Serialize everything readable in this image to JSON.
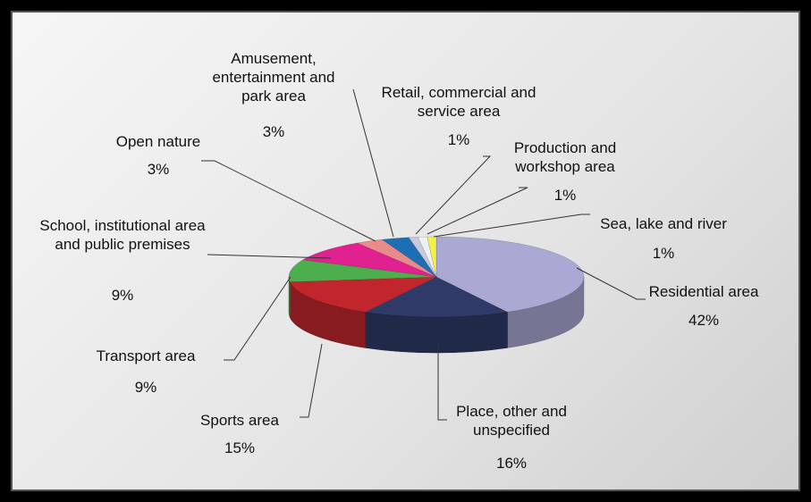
{
  "chart_data": {
    "type": "pie3d",
    "categories": [
      "Residential area",
      "Place, other and unspecified",
      "Sports area",
      "Transport area",
      "School, institutional area and public premises",
      "Open nature",
      "Amusement, entertainment and park area",
      "Retail, commercial and service area",
      "Production and workshop area",
      "Sea, lake and river"
    ],
    "values": [
      42,
      16,
      15,
      9,
      9,
      3,
      3,
      1,
      1,
      1
    ],
    "value_labels": [
      "42%",
      "16%",
      "15%",
      "9%",
      "9%",
      "3%",
      "3%",
      "1%",
      "1%",
      "1%"
    ],
    "colors": [
      "#a9a9d4",
      "#2f3a68",
      "#c1262d",
      "#4cae4c",
      "#e0218f",
      "#e98b8b",
      "#1f6db3",
      "#c9c9dc",
      "#eef0f8",
      "#f2f244"
    ]
  }
}
